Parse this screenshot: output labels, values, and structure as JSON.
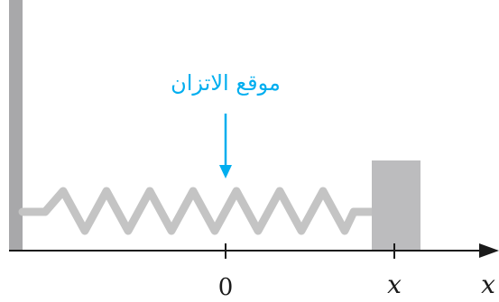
{
  "labels": {
    "equilibrium": "موقع الاتزان",
    "origin_tick": "0",
    "block_position": "x",
    "axis_name": "x"
  },
  "colors": {
    "equilibrium_text": "#00aeef",
    "arrow": "#00aeef",
    "wall": "#a8a8aa",
    "block_fill": "#bcbcbe",
    "spring": "#c4c4c4",
    "axis": "#1a1a1a"
  }
}
